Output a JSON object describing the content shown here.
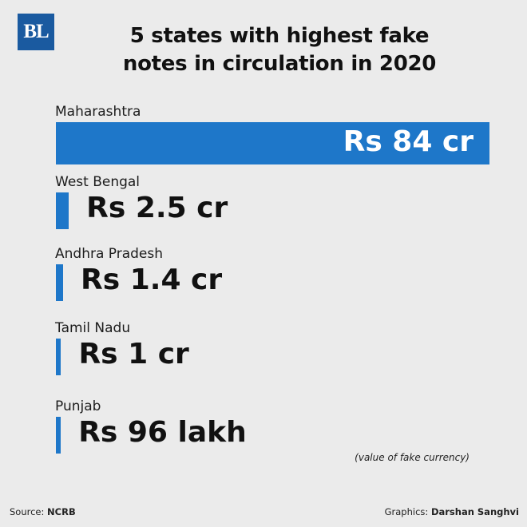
{
  "header": {
    "logo": "BL",
    "title_line1": "5 states with highest fake",
    "title_line2": "notes in circulation in 2020"
  },
  "chart_data": {
    "type": "bar",
    "orientation": "horizontal",
    "title": "5 states with highest fake notes in circulation in 2020",
    "categories": [
      "Maharashtra",
      "West Bengal",
      "Andhra Pradesh",
      "Tamil Nadu",
      "Punjab"
    ],
    "values": [
      84,
      2.5,
      1.4,
      1,
      0.96
    ],
    "value_labels": [
      "Rs 84 cr",
      "Rs 2.5 cr",
      "Rs 1.4 cr",
      "Rs 1 cr",
      "Rs 96 lakh"
    ],
    "unit": "Rs crore",
    "xlim": [
      0,
      84
    ],
    "grid": false,
    "legend": "none",
    "note": "(value of fake currency)",
    "bar_color": "#1e77c9",
    "text_color_on_bar": "#ffffff",
    "text_color_off_bar": "#111111"
  },
  "footer": {
    "source_prefix": "Source:",
    "source": "NCRB",
    "credit_prefix": "Graphics:",
    "credit": "Darshan Sanghvi"
  }
}
